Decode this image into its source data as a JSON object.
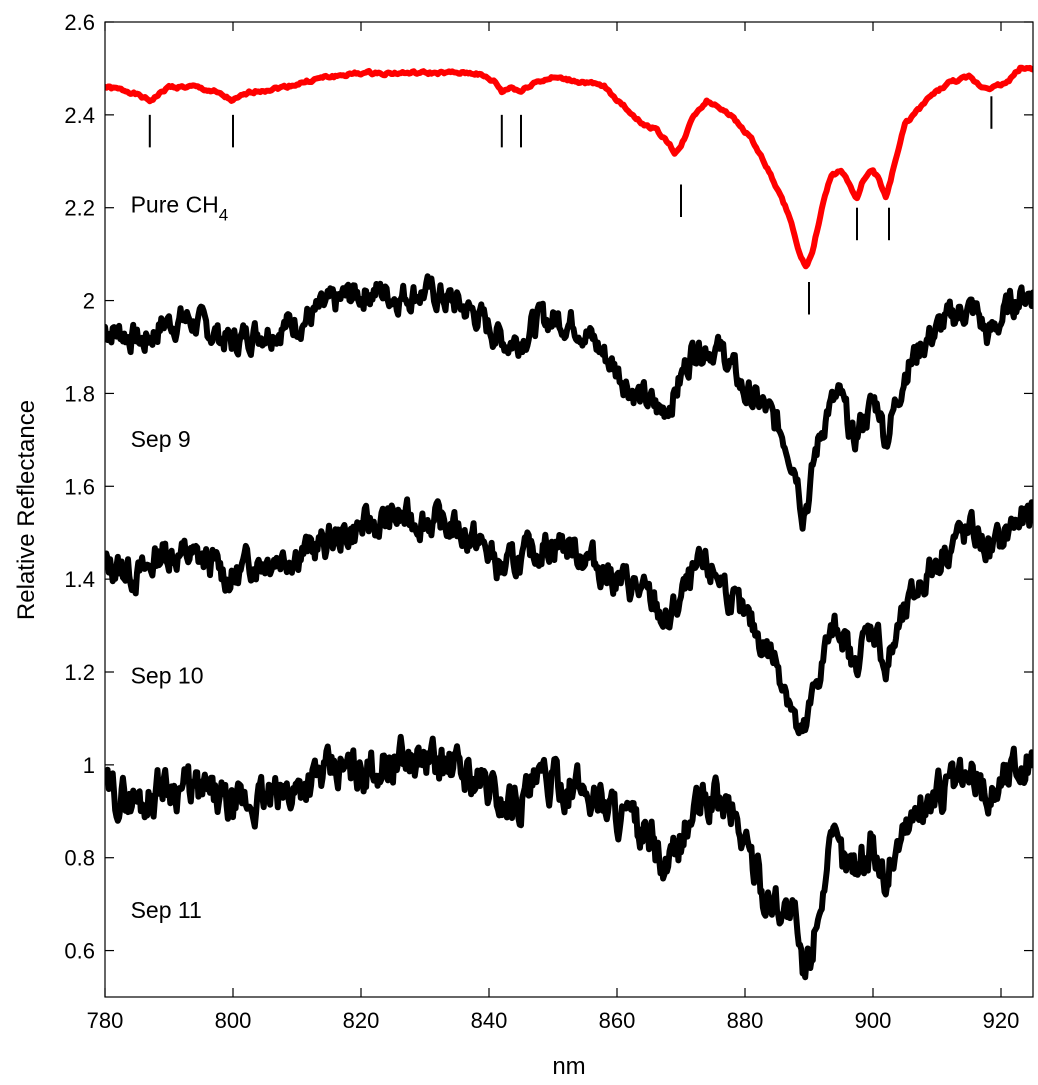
{
  "chart_data": {
    "type": "line",
    "xlabel": "nm",
    "ylabel": "Relative Reflectance",
    "xlim": [
      780,
      925
    ],
    "ylim": [
      0.5,
      2.6
    ],
    "xticks": [
      780,
      800,
      820,
      840,
      860,
      880,
      900,
      920
    ],
    "xtick_labels": [
      "780",
      "800",
      "820",
      "840",
      "860",
      "880",
      "900",
      "920"
    ],
    "yticks": [
      0.6,
      0.8,
      1.0,
      1.2,
      1.4,
      1.6,
      1.8,
      2.0,
      2.2,
      2.4,
      2.6
    ],
    "ytick_labels": [
      "0.6",
      "0.8",
      "1",
      "1.2",
      "1.4",
      "1.6",
      "1.8",
      "2",
      "2.2",
      "2.4",
      "2.6"
    ],
    "grid": false,
    "annotations": [
      {
        "base": "Pure CH",
        "sub": "4",
        "x": 784,
        "y": 2.19
      },
      {
        "base": "Sep 9",
        "sub": "",
        "x": 784,
        "y": 1.685
      },
      {
        "base": "Sep 10",
        "sub": "",
        "x": 784,
        "y": 1.175
      },
      {
        "base": "Sep 11",
        "sub": "",
        "x": 784,
        "y": 0.67
      }
    ],
    "band_markers": [
      {
        "x": 787,
        "y1": 2.33,
        "y2": 2.4
      },
      {
        "x": 800,
        "y1": 2.33,
        "y2": 2.4
      },
      {
        "x": 842,
        "y1": 2.33,
        "y2": 2.4
      },
      {
        "x": 845,
        "y1": 2.33,
        "y2": 2.4
      },
      {
        "x": 870,
        "y1": 2.18,
        "y2": 2.25
      },
      {
        "x": 890,
        "y1": 1.97,
        "y2": 2.04
      },
      {
        "x": 897.5,
        "y1": 2.13,
        "y2": 2.2
      },
      {
        "x": 902.5,
        "y1": 2.13,
        "y2": 2.2
      },
      {
        "x": 918.5,
        "y1": 2.37,
        "y2": 2.44
      }
    ],
    "series": [
      {
        "color": "#ff0000",
        "noise": 0.004,
        "seed": 1,
        "points": [
          [
            780,
            2.46
          ],
          [
            784,
            2.45
          ],
          [
            787,
            2.43
          ],
          [
            790,
            2.46
          ],
          [
            794,
            2.46
          ],
          [
            797,
            2.45
          ],
          [
            800,
            2.43
          ],
          [
            803,
            2.45
          ],
          [
            808,
            2.46
          ],
          [
            814,
            2.48
          ],
          [
            820,
            2.49
          ],
          [
            830,
            2.49
          ],
          [
            838,
            2.49
          ],
          [
            841,
            2.47
          ],
          [
            842,
            2.45
          ],
          [
            843.5,
            2.46
          ],
          [
            845,
            2.45
          ],
          [
            847,
            2.47
          ],
          [
            850,
            2.48
          ],
          [
            855,
            2.47
          ],
          [
            858,
            2.46
          ],
          [
            861,
            2.42
          ],
          [
            864,
            2.38
          ],
          [
            866,
            2.37
          ],
          [
            868,
            2.34
          ],
          [
            869,
            2.32
          ],
          [
            870,
            2.33
          ],
          [
            872,
            2.4
          ],
          [
            874,
            2.43
          ],
          [
            877,
            2.41
          ],
          [
            881,
            2.35
          ],
          [
            884,
            2.27
          ],
          [
            887,
            2.18
          ],
          [
            888.5,
            2.1
          ],
          [
            889.5,
            2.07
          ],
          [
            890.5,
            2.1
          ],
          [
            892,
            2.2
          ],
          [
            893.5,
            2.27
          ],
          [
            895,
            2.28
          ],
          [
            896,
            2.26
          ],
          [
            897.5,
            2.22
          ],
          [
            898.5,
            2.26
          ],
          [
            900,
            2.28
          ],
          [
            901,
            2.26
          ],
          [
            902,
            2.22
          ],
          [
            903.5,
            2.3
          ],
          [
            905,
            2.38
          ],
          [
            907,
            2.41
          ],
          [
            909,
            2.44
          ],
          [
            912,
            2.47
          ],
          [
            915,
            2.48
          ],
          [
            917,
            2.46
          ],
          [
            919,
            2.46
          ],
          [
            921,
            2.47
          ],
          [
            923,
            2.5
          ],
          [
            925,
            2.5
          ]
        ]
      },
      {
        "color": "#000000",
        "noise": 0.035,
        "seed": 7,
        "points": [
          [
            780,
            1.94
          ],
          [
            783,
            1.93
          ],
          [
            786,
            1.91
          ],
          [
            789,
            1.95
          ],
          [
            793,
            1.96
          ],
          [
            797,
            1.93
          ],
          [
            800,
            1.91
          ],
          [
            803,
            1.93
          ],
          [
            807,
            1.94
          ],
          [
            811,
            1.96
          ],
          [
            814,
            1.98
          ],
          [
            818,
            2.01
          ],
          [
            822,
            2.02
          ],
          [
            826,
            2.01
          ],
          [
            830,
            2.02
          ],
          [
            834,
            2.0
          ],
          [
            838,
            1.97
          ],
          [
            841,
            1.93
          ],
          [
            843,
            1.91
          ],
          [
            845,
            1.92
          ],
          [
            848,
            1.96
          ],
          [
            851,
            1.96
          ],
          [
            854,
            1.95
          ],
          [
            857,
            1.9
          ],
          [
            860,
            1.85
          ],
          [
            863,
            1.8
          ],
          [
            866,
            1.77
          ],
          [
            867,
            1.76
          ],
          [
            869,
            1.8
          ],
          [
            872,
            1.9
          ],
          [
            875,
            1.9
          ],
          [
            877,
            1.88
          ],
          [
            880,
            1.8
          ],
          [
            883,
            1.77
          ],
          [
            886,
            1.71
          ],
          [
            888,
            1.64
          ],
          [
            889,
            1.55
          ],
          [
            890,
            1.58
          ],
          [
            891,
            1.67
          ],
          [
            893,
            1.77
          ],
          [
            895,
            1.79
          ],
          [
            897,
            1.69
          ],
          [
            898,
            1.73
          ],
          [
            900,
            1.78
          ],
          [
            901,
            1.77
          ],
          [
            902,
            1.7
          ],
          [
            903,
            1.75
          ],
          [
            905,
            1.85
          ],
          [
            908,
            1.91
          ],
          [
            911,
            1.95
          ],
          [
            914,
            1.98
          ],
          [
            916,
            1.98
          ],
          [
            918,
            1.92
          ],
          [
            920,
            1.96
          ],
          [
            922,
            2.0
          ],
          [
            925,
            2.02
          ]
        ]
      },
      {
        "color": "#000000",
        "noise": 0.04,
        "seed": 13,
        "points": [
          [
            780,
            1.43
          ],
          [
            783,
            1.42
          ],
          [
            786,
            1.41
          ],
          [
            789,
            1.46
          ],
          [
            793,
            1.45
          ],
          [
            797,
            1.43
          ],
          [
            800,
            1.4
          ],
          [
            803,
            1.44
          ],
          [
            807,
            1.45
          ],
          [
            811,
            1.46
          ],
          [
            815,
            1.48
          ],
          [
            820,
            1.51
          ],
          [
            825,
            1.53
          ],
          [
            830,
            1.53
          ],
          [
            835,
            1.51
          ],
          [
            839,
            1.47
          ],
          [
            842,
            1.42
          ],
          [
            845,
            1.44
          ],
          [
            848,
            1.47
          ],
          [
            851,
            1.48
          ],
          [
            854,
            1.46
          ],
          [
            857,
            1.43
          ],
          [
            860,
            1.4
          ],
          [
            863,
            1.38
          ],
          [
            866,
            1.34
          ],
          [
            868,
            1.3
          ],
          [
            870,
            1.36
          ],
          [
            873,
            1.42
          ],
          [
            876,
            1.41
          ],
          [
            879,
            1.33
          ],
          [
            882,
            1.28
          ],
          [
            885,
            1.22
          ],
          [
            887,
            1.15
          ],
          [
            888.5,
            1.05
          ],
          [
            889.5,
            1.07
          ],
          [
            891,
            1.17
          ],
          [
            893,
            1.27
          ],
          [
            895,
            1.3
          ],
          [
            897,
            1.2
          ],
          [
            898,
            1.25
          ],
          [
            900,
            1.3
          ],
          [
            901,
            1.27
          ],
          [
            902,
            1.2
          ],
          [
            904,
            1.29
          ],
          [
            907,
            1.38
          ],
          [
            910,
            1.44
          ],
          [
            913,
            1.49
          ],
          [
            916,
            1.5
          ],
          [
            918,
            1.46
          ],
          [
            920,
            1.48
          ],
          [
            922,
            1.52
          ],
          [
            925,
            1.53
          ]
        ]
      },
      {
        "color": "#000000",
        "noise": 0.05,
        "seed": 29,
        "points": [
          [
            780,
            0.94
          ],
          [
            783,
            0.93
          ],
          [
            786,
            0.92
          ],
          [
            789,
            0.96
          ],
          [
            793,
            0.95
          ],
          [
            797,
            0.93
          ],
          [
            800,
            0.9
          ],
          [
            803,
            0.92
          ],
          [
            807,
            0.93
          ],
          [
            811,
            0.96
          ],
          [
            815,
            0.98
          ],
          [
            820,
            0.99
          ],
          [
            825,
            1.01
          ],
          [
            830,
            1.01
          ],
          [
            835,
            0.99
          ],
          [
            839,
            0.96
          ],
          [
            842,
            0.92
          ],
          [
            845,
            0.93
          ],
          [
            848,
            0.96
          ],
          [
            851,
            0.96
          ],
          [
            854,
            0.95
          ],
          [
            857,
            0.93
          ],
          [
            860,
            0.9
          ],
          [
            863,
            0.86
          ],
          [
            866,
            0.82
          ],
          [
            867.5,
            0.76
          ],
          [
            869,
            0.8
          ],
          [
            872,
            0.9
          ],
          [
            875,
            0.93
          ],
          [
            878,
            0.9
          ],
          [
            881,
            0.8
          ],
          [
            883,
            0.72
          ],
          [
            886,
            0.7
          ],
          [
            888,
            0.65
          ],
          [
            889,
            0.54
          ],
          [
            890,
            0.58
          ],
          [
            892,
            0.74
          ],
          [
            894,
            0.82
          ],
          [
            896,
            0.78
          ],
          [
            898,
            0.8
          ],
          [
            900,
            0.82
          ],
          [
            902,
            0.76
          ],
          [
            904,
            0.84
          ],
          [
            907,
            0.9
          ],
          [
            910,
            0.94
          ],
          [
            913,
            0.96
          ],
          [
            916,
            0.97
          ],
          [
            918,
            0.93
          ],
          [
            920,
            0.97
          ],
          [
            922,
            1.0
          ],
          [
            925,
            1.01
          ]
        ]
      }
    ]
  }
}
